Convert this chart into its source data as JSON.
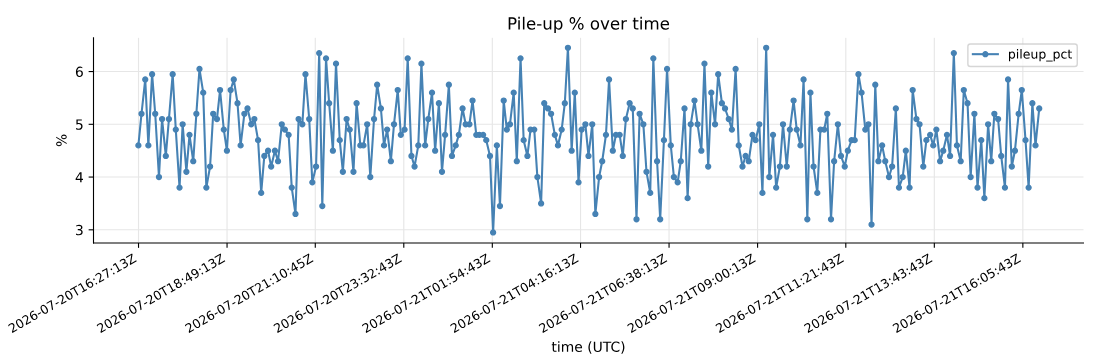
{
  "chart_data": {
    "type": "line",
    "title": "Pile-up % over time",
    "xlabel": "time (UTC)",
    "ylabel": "%",
    "x": [
      "2026-07-20T16:27",
      "2026-07-20T16:32",
      "2026-07-20T16:38",
      "2026-07-20T16:43",
      "2026-07-20T16:49",
      "2026-07-20T16:54",
      "2026-07-20T17:00",
      "2026-07-20T17:05",
      "2026-07-20T17:11",
      "2026-07-20T17:16",
      "2026-07-20T17:22",
      "2026-07-20T17:27",
      "2026-07-20T17:33",
      "2026-07-20T17:38",
      "2026-07-20T17:44",
      "2026-07-20T17:49",
      "2026-07-20T17:55",
      "2026-07-20T18:00",
      "2026-07-20T18:05",
      "2026-07-20T18:11",
      "2026-07-20T18:16",
      "2026-07-20T18:22",
      "2026-07-20T18:27",
      "2026-07-20T18:33",
      "2026-07-20T18:38",
      "2026-07-20T18:44",
      "2026-07-20T18:49",
      "2026-07-20T18:55",
      "2026-07-20T19:00",
      "2026-07-20T19:06",
      "2026-07-20T19:11",
      "2026-07-20T19:17",
      "2026-07-20T19:22",
      "2026-07-20T19:28",
      "2026-07-20T19:33",
      "2026-07-20T19:39",
      "2026-07-20T19:44",
      "2026-07-20T19:49",
      "2026-07-20T19:55",
      "2026-07-20T20:00",
      "2026-07-20T20:06",
      "2026-07-20T20:11",
      "2026-07-20T20:17",
      "2026-07-20T20:22",
      "2026-07-20T20:28",
      "2026-07-20T20:33",
      "2026-07-20T20:39",
      "2026-07-20T20:44",
      "2026-07-20T20:50",
      "2026-07-20T20:55",
      "2026-07-20T21:01",
      "2026-07-20T21:06",
      "2026-07-20T21:12",
      "2026-07-20T21:17",
      "2026-07-20T21:22",
      "2026-07-20T21:28",
      "2026-07-20T21:33",
      "2026-07-20T21:39",
      "2026-07-20T21:44",
      "2026-07-20T21:50",
      "2026-07-20T21:55",
      "2026-07-20T22:01",
      "2026-07-20T22:06",
      "2026-07-20T22:12",
      "2026-07-20T22:17",
      "2026-07-20T22:23",
      "2026-07-20T22:28",
      "2026-07-20T22:34",
      "2026-07-20T22:39",
      "2026-07-20T22:45",
      "2026-07-20T22:50",
      "2026-07-20T22:56",
      "2026-07-20T23:01",
      "2026-07-20T23:06",
      "2026-07-20T23:12",
      "2026-07-20T23:17",
      "2026-07-20T23:23",
      "2026-07-20T23:28",
      "2026-07-20T23:34",
      "2026-07-20T23:39",
      "2026-07-20T23:45",
      "2026-07-20T23:50",
      "2026-07-20T23:56",
      "2026-07-21T00:01",
      "2026-07-21T00:07",
      "2026-07-21T00:12",
      "2026-07-21T00:18",
      "2026-07-21T00:23",
      "2026-07-21T00:29",
      "2026-07-21T00:34",
      "2026-07-21T00:39",
      "2026-07-21T00:45",
      "2026-07-21T00:50",
      "2026-07-21T00:56",
      "2026-07-21T01:01",
      "2026-07-21T01:07",
      "2026-07-21T01:12",
      "2026-07-21T01:18",
      "2026-07-21T01:23",
      "2026-07-21T01:29",
      "2026-07-21T01:34",
      "2026-07-21T01:40",
      "2026-07-21T01:45",
      "2026-07-21T01:51",
      "2026-07-21T01:56",
      "2026-07-21T02:02",
      "2026-07-21T02:07",
      "2026-07-21T02:13",
      "2026-07-21T02:18",
      "2026-07-21T02:23",
      "2026-07-21T02:29",
      "2026-07-21T02:34",
      "2026-07-21T02:40",
      "2026-07-21T02:45",
      "2026-07-21T02:51",
      "2026-07-21T02:56",
      "2026-07-21T03:02",
      "2026-07-21T03:07",
      "2026-07-21T03:13",
      "2026-07-21T03:18",
      "2026-07-21T03:24",
      "2026-07-21T03:29",
      "2026-07-21T03:35",
      "2026-07-21T03:40",
      "2026-07-21T03:46",
      "2026-07-21T03:51",
      "2026-07-21T03:56",
      "2026-07-21T04:02",
      "2026-07-21T04:07",
      "2026-07-21T04:13",
      "2026-07-21T04:18",
      "2026-07-21T04:24",
      "2026-07-21T04:29",
      "2026-07-21T04:35",
      "2026-07-21T04:40",
      "2026-07-21T04:46",
      "2026-07-21T04:51",
      "2026-07-21T04:57",
      "2026-07-21T05:02",
      "2026-07-21T05:08",
      "2026-07-21T05:13",
      "2026-07-21T05:19",
      "2026-07-21T05:24",
      "2026-07-21T05:29",
      "2026-07-21T05:35",
      "2026-07-21T05:40",
      "2026-07-21T05:46",
      "2026-07-21T05:51",
      "2026-07-21T05:57",
      "2026-07-21T06:02",
      "2026-07-21T06:08",
      "2026-07-21T06:13",
      "2026-07-21T06:19",
      "2026-07-21T06:24",
      "2026-07-21T06:30",
      "2026-07-21T06:35",
      "2026-07-21T06:41",
      "2026-07-21T06:46",
      "2026-07-21T06:52",
      "2026-07-21T06:57",
      "2026-07-21T07:03",
      "2026-07-21T07:08",
      "2026-07-21T07:13",
      "2026-07-21T07:19",
      "2026-07-21T07:24",
      "2026-07-21T07:30",
      "2026-07-21T07:35",
      "2026-07-21T07:41",
      "2026-07-21T07:46",
      "2026-07-21T07:52",
      "2026-07-21T07:57",
      "2026-07-21T08:03",
      "2026-07-21T08:08",
      "2026-07-21T08:14",
      "2026-07-21T08:19",
      "2026-07-21T08:25",
      "2026-07-21T08:30",
      "2026-07-21T08:36",
      "2026-07-21T08:41",
      "2026-07-21T08:46",
      "2026-07-21T08:52",
      "2026-07-21T08:57",
      "2026-07-21T09:03",
      "2026-07-21T09:08",
      "2026-07-21T09:14",
      "2026-07-21T09:19",
      "2026-07-21T09:25",
      "2026-07-21T09:30",
      "2026-07-21T09:36",
      "2026-07-21T09:41",
      "2026-07-21T09:47",
      "2026-07-21T09:52",
      "2026-07-21T09:58",
      "2026-07-21T10:03",
      "2026-07-21T10:09",
      "2026-07-21T10:14",
      "2026-07-21T10:20",
      "2026-07-21T10:25",
      "2026-07-21T10:30",
      "2026-07-21T10:36",
      "2026-07-21T10:41",
      "2026-07-21T10:47",
      "2026-07-21T10:52",
      "2026-07-21T10:58",
      "2026-07-21T11:03",
      "2026-07-21T11:09",
      "2026-07-21T11:14",
      "2026-07-21T11:20",
      "2026-07-21T11:25",
      "2026-07-21T11:31",
      "2026-07-21T11:36",
      "2026-07-21T11:42",
      "2026-07-21T11:47",
      "2026-07-21T11:53",
      "2026-07-21T11:58",
      "2026-07-21T12:03",
      "2026-07-21T12:09",
      "2026-07-21T12:14",
      "2026-07-21T12:20",
      "2026-07-21T12:25",
      "2026-07-21T12:31",
      "2026-07-21T12:36",
      "2026-07-21T12:42",
      "2026-07-21T12:47",
      "2026-07-21T12:53",
      "2026-07-21T12:58",
      "2026-07-21T13:04",
      "2026-07-21T13:09",
      "2026-07-21T13:15",
      "2026-07-21T13:20",
      "2026-07-21T13:26",
      "2026-07-21T13:31",
      "2026-07-21T13:37",
      "2026-07-21T13:42",
      "2026-07-21T13:47",
      "2026-07-21T13:53",
      "2026-07-21T13:58",
      "2026-07-21T14:04",
      "2026-07-21T14:09",
      "2026-07-21T14:15",
      "2026-07-21T14:20",
      "2026-07-21T14:26",
      "2026-07-21T14:31",
      "2026-07-21T14:37",
      "2026-07-21T14:42",
      "2026-07-21T14:48",
      "2026-07-21T14:53",
      "2026-07-21T14:59",
      "2026-07-21T15:04",
      "2026-07-21T15:10",
      "2026-07-21T15:15",
      "2026-07-21T15:20",
      "2026-07-21T15:26",
      "2026-07-21T15:31",
      "2026-07-21T15:37",
      "2026-07-21T15:42",
      "2026-07-21T15:48",
      "2026-07-21T15:53",
      "2026-07-21T15:59",
      "2026-07-21T16:04",
      "2026-07-21T16:10",
      "2026-07-21T16:15",
      "2026-07-21T16:21",
      "2026-07-21T16:26",
      "2026-07-21T16:32"
    ],
    "series": [
      {
        "name": "pileup_pct",
        "color": "#4682b4",
        "values": [
          4.6,
          5.2,
          5.85,
          4.6,
          5.95,
          5.2,
          4.0,
          5.1,
          4.4,
          5.1,
          5.95,
          4.9,
          3.8,
          5.0,
          4.1,
          4.8,
          4.3,
          5.2,
          6.05,
          5.6,
          3.8,
          4.2,
          5.2,
          5.1,
          5.65,
          4.9,
          4.5,
          5.65,
          5.85,
          5.4,
          4.6,
          5.2,
          5.3,
          5.0,
          5.1,
          4.7,
          3.7,
          4.4,
          4.5,
          4.2,
          4.5,
          4.3,
          5.0,
          4.9,
          4.8,
          3.8,
          3.3,
          5.1,
          5.0,
          5.95,
          5.1,
          3.9,
          4.2,
          6.35,
          3.45,
          6.25,
          5.4,
          4.5,
          6.15,
          4.7,
          4.1,
          5.1,
          4.9,
          4.1,
          5.4,
          4.6,
          4.6,
          5.0,
          4.0,
          5.1,
          5.75,
          5.3,
          4.6,
          4.9,
          4.3,
          5.0,
          5.65,
          4.8,
          4.9,
          6.25,
          4.4,
          4.2,
          4.6,
          6.15,
          4.6,
          5.1,
          5.6,
          4.5,
          5.4,
          4.1,
          4.8,
          5.75,
          4.4,
          4.6,
          4.8,
          5.3,
          5.0,
          5.0,
          5.45,
          4.8,
          4.8,
          4.8,
          4.7,
          4.4,
          2.95,
          4.6,
          3.45,
          5.45,
          4.9,
          5.0,
          5.6,
          4.3,
          6.25,
          4.7,
          4.4,
          4.9,
          4.9,
          4.0,
          3.5,
          5.4,
          5.3,
          5.2,
          4.8,
          4.6,
          4.9,
          5.4,
          6.45,
          4.5,
          5.6,
          3.9,
          4.9,
          5.0,
          4.4,
          5.0,
          3.3,
          4.0,
          4.3,
          4.8,
          5.85,
          4.5,
          4.8,
          4.8,
          4.4,
          5.1,
          5.4,
          5.3,
          3.2,
          5.2,
          5.0,
          4.1,
          3.7,
          6.25,
          4.3,
          3.2,
          4.7,
          6.05,
          4.6,
          4.0,
          3.9,
          4.3,
          5.3,
          3.6,
          5.0,
          5.45,
          5.0,
          4.5,
          6.15,
          4.2,
          5.6,
          5.0,
          5.95,
          5.4,
          5.3,
          5.1,
          4.9,
          6.05,
          4.6,
          4.2,
          4.4,
          4.3,
          4.8,
          4.7,
          5.0,
          3.7,
          6.45,
          4.0,
          4.8,
          3.8,
          4.2,
          5.0,
          4.2,
          4.9,
          5.45,
          4.9,
          4.6,
          5.85,
          3.2,
          5.6,
          4.2,
          3.7,
          4.9,
          4.9,
          5.2,
          3.2,
          4.3,
          5.0,
          4.4,
          4.2,
          4.5,
          4.7,
          4.7,
          5.95,
          5.6,
          4.9,
          5.0,
          3.1,
          5.75,
          4.3,
          4.6,
          4.3,
          4.0,
          4.2,
          5.3,
          3.8,
          4.0,
          4.5,
          3.8,
          5.65,
          5.1,
          5.0,
          4.2,
          4.7,
          4.8,
          4.6,
          4.9,
          4.3,
          4.5,
          4.8,
          4.4,
          6.35,
          4.6,
          4.3,
          5.65,
          5.4,
          4.0,
          5.2,
          3.8,
          4.7,
          3.6,
          5.0,
          4.3,
          5.2,
          5.1,
          4.4,
          3.8,
          5.85,
          4.2,
          4.5,
          5.2,
          5.65,
          4.7,
          3.8,
          5.4,
          4.6,
          5.3
        ]
      }
    ],
    "xlim": [
      "2026-07-20T15:15",
      "2026-07-21T17:43"
    ],
    "ylim": [
      2.75,
      6.64
    ],
    "yticks": [
      3,
      4,
      5,
      6
    ],
    "xticks": [
      {
        "value": "2026-07-20T16:27:13",
        "label": "2026-07-20T16:27:13Z"
      },
      {
        "value": "2026-07-20T18:49:13",
        "label": "2026-07-20T18:49:13Z"
      },
      {
        "value": "2026-07-20T21:10:45",
        "label": "2026-07-20T21:10:45Z"
      },
      {
        "value": "2026-07-20T23:32:43",
        "label": "2026-07-20T23:32:43Z"
      },
      {
        "value": "2026-07-21T01:54:43",
        "label": "2026-07-21T01:54:43Z"
      },
      {
        "value": "2026-07-21T04:16:13",
        "label": "2026-07-21T04:16:13Z"
      },
      {
        "value": "2026-07-21T06:38:13",
        "label": "2026-07-21T06:38:13Z"
      },
      {
        "value": "2026-07-21T09:00:13",
        "label": "2026-07-21T09:00:13Z"
      },
      {
        "value": "2026-07-21T11:21:43",
        "label": "2026-07-21T11:21:43Z"
      },
      {
        "value": "2026-07-21T13:43:43",
        "label": "2026-07-21T13:43:43Z"
      },
      {
        "value": "2026-07-21T16:05:43",
        "label": "2026-07-21T16:05:43Z"
      }
    ],
    "grid": true,
    "legend": "top right",
    "marker": "circle",
    "line_style": "solid"
  }
}
